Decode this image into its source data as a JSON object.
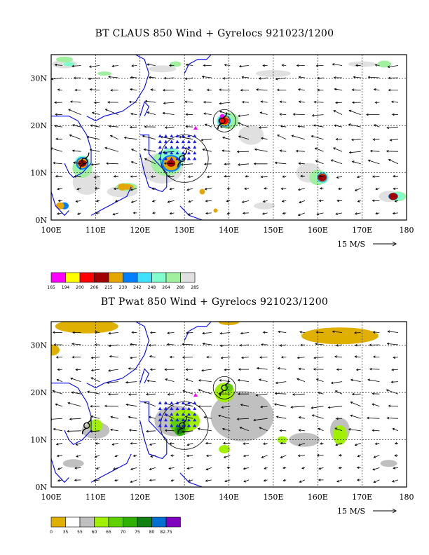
{
  "panels": [
    {
      "title": "BT CLAUS 850 Wind + Gyrelocs 921023/1200",
      "x_ticks": [
        "100E",
        "110E",
        "120E",
        "130E",
        "140E",
        "150E",
        "160E",
        "170E",
        "180"
      ],
      "y_ticks": [
        "0N",
        "10N",
        "20N",
        "30N"
      ],
      "vector_scale_label": "15 M/S",
      "colorbar": {
        "colors": [
          "#ff00ff",
          "#ffff00",
          "#ff0000",
          "#a00000",
          "#e6a600",
          "#0080ff",
          "#40e0ff",
          "#80ffcc",
          "#a0f0a0",
          "#e0e0e0"
        ],
        "labels": [
          "165",
          "194",
          "200",
          "206",
          "215",
          "230",
          "242",
          "248",
          "264",
          "280",
          "285"
        ]
      }
    },
    {
      "title": "BT Pwat 850 Wind + Gyrelocs 921023/1200",
      "x_ticks": [
        "100E",
        "110E",
        "120E",
        "130E",
        "140E",
        "150E",
        "160E",
        "170E",
        "180"
      ],
      "y_ticks": [
        "0N",
        "10N",
        "20N",
        "30N"
      ],
      "vector_scale_label": "15 M/S",
      "colorbar": {
        "colors": [
          "#e0b000",
          "#ffffff",
          "#c0c0c0",
          "#a0f000",
          "#60d000",
          "#30b000",
          "#108010",
          "#0070d0",
          "#8000c0"
        ],
        "labels": [
          "0",
          "35",
          "55",
          "60",
          "65",
          "70",
          "75",
          "80",
          "82.75"
        ]
      }
    }
  ],
  "chart_data": [
    {
      "type": "heatmap",
      "title": "BT CLAUS 850 Wind + Gyrelocs 921023/1200",
      "xlim": [
        100,
        180
      ],
      "ylim": [
        0,
        35
      ],
      "x_ticks": [
        100,
        110,
        120,
        130,
        140,
        150,
        160,
        170,
        180
      ],
      "y_ticks": [
        0,
        10,
        20,
        30
      ],
      "grid": true,
      "colorbar_levels": [
        165,
        194,
        200,
        206,
        215,
        230,
        242,
        248,
        264,
        280,
        285
      ],
      "cloud_clusters": [
        {
          "lon": 107,
          "lat": 12,
          "level": 206
        },
        {
          "lon": 127,
          "lat": 12,
          "level": 206
        },
        {
          "lon": 139,
          "lat": 21,
          "level": 200
        },
        {
          "lon": 161,
          "lat": 9,
          "level": 206
        },
        {
          "lon": 177,
          "lat": 5,
          "level": 206
        },
        {
          "lon": 116,
          "lat": 7,
          "level": 215
        },
        {
          "lon": 102,
          "lat": 3,
          "level": 215
        }
      ],
      "typhoon_symbols": [
        {
          "lon": 107.5,
          "lat": 12.5
        },
        {
          "lon": 129.5,
          "lat": 13
        },
        {
          "lon": 138.5,
          "lat": 21
        }
      ]
    },
    {
      "type": "heatmap",
      "title": "BT Pwat 850 Wind + Gyrelocs 921023/1200",
      "xlim": [
        100,
        180
      ],
      "ylim": [
        0,
        35
      ],
      "x_ticks": [
        100,
        110,
        120,
        130,
        140,
        150,
        160,
        170,
        180
      ],
      "y_ticks": [
        0,
        10,
        20,
        30
      ],
      "grid": true,
      "colorbar_levels": [
        0,
        35,
        55,
        60,
        65,
        70,
        75,
        80,
        82.75
      ],
      "typhoon_symbols": [
        {
          "lon": 108,
          "lat": 13
        },
        {
          "lon": 129.5,
          "lat": 13
        },
        {
          "lon": 139,
          "lat": 21
        }
      ]
    }
  ]
}
